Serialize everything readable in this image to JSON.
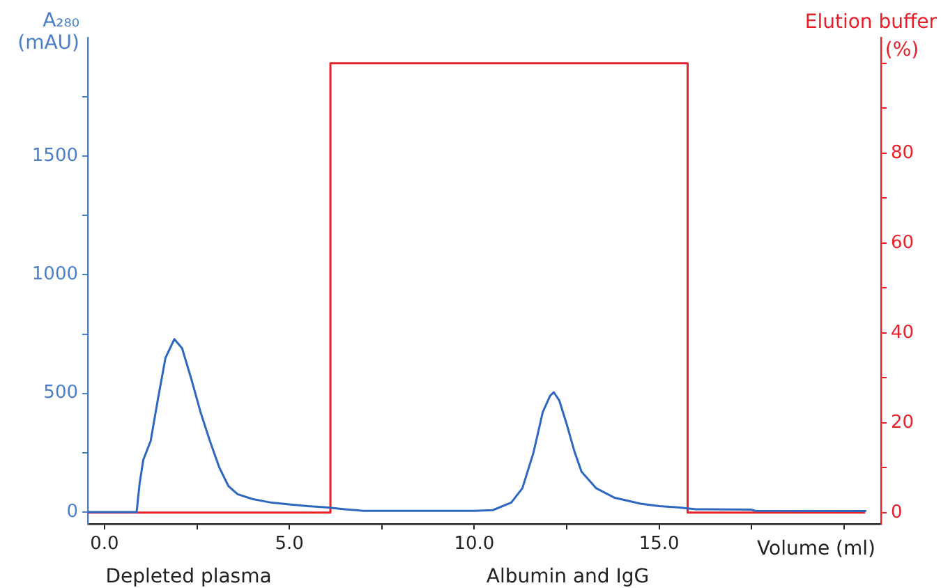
{
  "chart_data": {
    "type": "line",
    "ylabel": "A₂₈₀ (mAU)",
    "y2label": "Elution buffer (%)",
    "xlabel": "Volume (ml)",
    "annotations": [
      "Depleted plasma",
      "Albumin and IgG"
    ],
    "xlim": [
      -0.45,
      21.0
    ],
    "xticks": [
      {
        "value": 0,
        "label": "0.0"
      },
      {
        "value": 2.5,
        "label": null
      },
      {
        "value": 5,
        "label": "5.0"
      },
      {
        "value": 7.5,
        "label": null
      },
      {
        "value": 10,
        "label": "10.0"
      },
      {
        "value": 12.5,
        "label": null
      },
      {
        "value": 15,
        "label": "15.0"
      },
      {
        "value": 17.5,
        "label": null
      },
      {
        "value": 20,
        "label": null
      }
    ],
    "ylim": [
      -50,
      2000
    ],
    "yticks": [
      0,
      {
        "value": 250,
        "label": null
      },
      500,
      {
        "value": 750,
        "label": null
      },
      1000,
      {
        "value": 1250,
        "label": null
      },
      1500,
      {
        "value": 1750,
        "label": null
      }
    ],
    "y2lim": [
      -2.5,
      105.7
    ],
    "y2ticks": [
      0,
      {
        "value": 10,
        "label": null
      },
      20,
      {
        "value": 30,
        "label": null
      },
      40,
      {
        "value": 50,
        "label": null
      },
      60,
      {
        "value": 70,
        "label": null
      },
      80,
      {
        "value": 90,
        "label": null
      },
      {
        "value": 100,
        "label": null
      }
    ],
    "grid": false,
    "legend": false,
    "marker": "none",
    "series": [
      {
        "color": "#2e67bf",
        "x": [
          -0.45,
          0.87,
          0.95,
          1.05,
          1.25,
          1.45,
          1.65,
          1.89,
          2.1,
          2.35,
          2.6,
          2.85,
          3.1,
          3.35,
          3.6,
          4.0,
          4.5,
          5.0,
          5.5,
          6.0,
          6.5,
          7.0,
          10.0,
          10.5,
          11.0,
          11.3,
          11.6,
          11.85,
          12.05,
          12.15,
          12.3,
          12.5,
          12.7,
          12.9,
          13.3,
          13.8,
          14.5,
          15.0,
          15.5,
          16.0,
          17.5,
          17.6,
          20.6
        ],
        "values": [
          0,
          0,
          120,
          220,
          300,
          480,
          650,
          729,
          690,
          560,
          420,
          300,
          190,
          110,
          75,
          55,
          40,
          32,
          25,
          20,
          12,
          5,
          5,
          8,
          40,
          100,
          250,
          420,
          490,
          505,
          470,
          370,
          260,
          170,
          100,
          60,
          35,
          25,
          20,
          12,
          10,
          5,
          4
        ]
      },
      {
        "color": "#e8202a",
        "axis": "y2",
        "x": [
          -0.45,
          6.11,
          6.11,
          15.77,
          15.77,
          20.57
        ],
        "values": [
          0,
          0,
          100,
          100,
          0,
          0
        ]
      }
    ]
  }
}
